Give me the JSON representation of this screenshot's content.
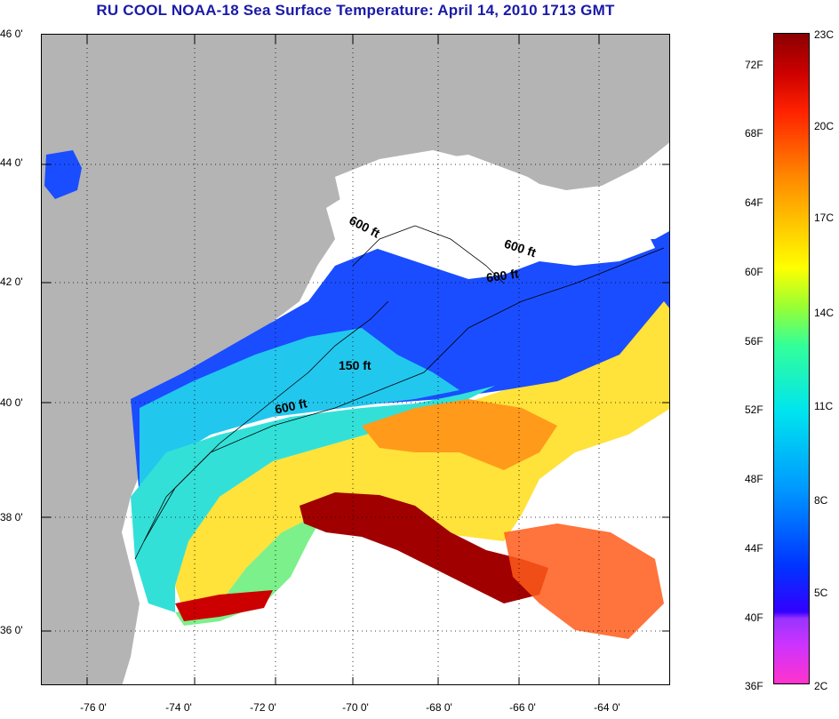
{
  "title": "RU COOL  NOAA-18  Sea Surface Temperature:  April 14, 2010 1713 GMT",
  "latitude_labels": [
    "46 0'",
    "44 0'",
    "42 0'",
    "40 0'",
    "38 0'",
    "36 0'"
  ],
  "longitude_labels": [
    "-76 0'",
    "-74 0'",
    "-72 0'",
    "-70 0'",
    "-68 0'",
    "-66 0'",
    "-64 0'"
  ],
  "contour_labels": [
    "600 ft",
    "600 ft",
    "600 ft",
    "150 ft",
    "600 ft"
  ],
  "colorbar": {
    "fahrenheit_labels": [
      "72F",
      "68F",
      "64F",
      "60F",
      "56F",
      "52F",
      "48F",
      "44F",
      "40F",
      "36F"
    ],
    "celsius_labels": [
      "23C",
      "20C",
      "17C",
      "14C",
      "11C",
      "8C",
      "5C",
      "2C"
    ],
    "colors": [
      "#ff33cc",
      "#9933ff",
      "#0033ff",
      "#0099ff",
      "#00e5ee",
      "#33ff99",
      "#ffff00",
      "#ff8800",
      "#ff2200",
      "#8b0000"
    ]
  },
  "map_colors": {
    "land": "#b4b4b4",
    "cloud": "#ffffff",
    "grid": "#000000"
  }
}
